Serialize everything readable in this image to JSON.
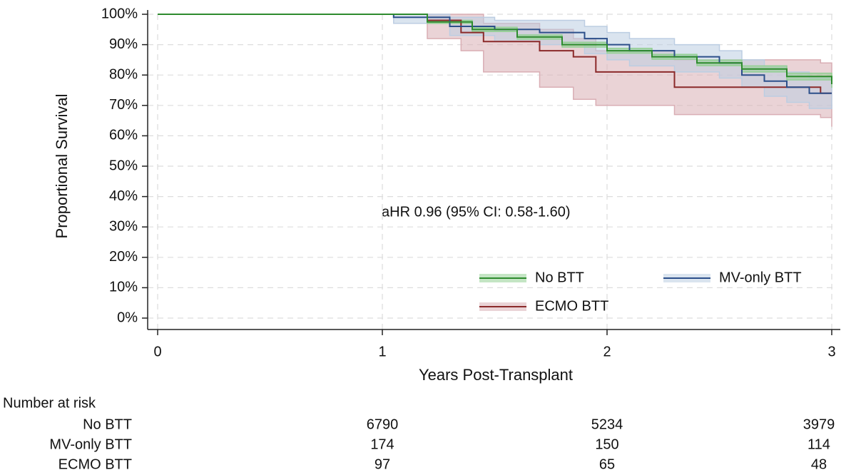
{
  "chart_data": {
    "type": "line",
    "step": true,
    "x_label": "Years Post-Transplant",
    "y_label": "Proportional Survival",
    "annotation": "aHR 0.96 (95% CI: 0.58-1.60)",
    "xlim": [
      0,
      3
    ],
    "xticks": [
      0,
      1,
      2,
      3
    ],
    "ylim": [
      0,
      100
    ],
    "yticks": [
      {
        "value": 0,
        "label": "0%"
      },
      {
        "value": 10,
        "label": "10%"
      },
      {
        "value": 20,
        "label": "20%"
      },
      {
        "value": 30,
        "label": "30%"
      },
      {
        "value": 40,
        "label": "40%"
      },
      {
        "value": 50,
        "label": "50%"
      },
      {
        "value": 60,
        "label": "60%"
      },
      {
        "value": 70,
        "label": "70%"
      },
      {
        "value": 80,
        "label": "80%"
      },
      {
        "value": 90,
        "label": "90%"
      },
      {
        "value": 100,
        "label": "100%"
      }
    ],
    "grid": true,
    "legend": "bottom right",
    "series": [
      {
        "name": "ECMO BTT",
        "color": "#8b2a2a",
        "band_color": "#d9aeb4",
        "x": [
          0,
          1.0,
          1.2,
          1.35,
          1.45,
          1.7,
          1.85,
          1.95,
          2.3,
          2.95,
          3.0
        ],
        "values": [
          100,
          100,
          98,
          94,
          91,
          88,
          86,
          81,
          76,
          74,
          74
        ],
        "lower": [
          100,
          100,
          92,
          88,
          81,
          76,
          72,
          70,
          67,
          66,
          63
        ],
        "upper": [
          100,
          100,
          100,
          100,
          97,
          95,
          92,
          88,
          85,
          84,
          82
        ]
      },
      {
        "name": "MV-only BTT",
        "color": "#2c4f8a",
        "band_color": "#bccde2",
        "x": [
          0,
          1.0,
          1.05,
          1.3,
          1.5,
          1.7,
          1.9,
          2.0,
          2.1,
          2.3,
          2.5,
          2.6,
          2.7,
          2.8,
          2.9,
          3.0
        ],
        "values": [
          100,
          100,
          99,
          96,
          95,
          94,
          92,
          90,
          88,
          86,
          84,
          80,
          78,
          76,
          74,
          74
        ],
        "lower": [
          100,
          100,
          97,
          93,
          91,
          90,
          87,
          85,
          83,
          81,
          79,
          76,
          73,
          71,
          69,
          69
        ],
        "upper": [
          100,
          100,
          100,
          99,
          98,
          98,
          96,
          94,
          92,
          90,
          88,
          85,
          83,
          81,
          79,
          79
        ]
      },
      {
        "name": "No BTT",
        "color": "#2e8b2e",
        "band_color": "#93cf93",
        "x": [
          0,
          1.0,
          1.2,
          1.4,
          1.6,
          1.8,
          2.0,
          2.2,
          2.4,
          2.6,
          2.8,
          3.0
        ],
        "values": [
          100,
          100,
          97.5,
          95,
          92.5,
          90,
          88,
          86,
          84,
          82,
          79.5,
          77
        ],
        "lower": [
          100,
          100,
          97,
          94.3,
          91.8,
          89.2,
          87.2,
          85.2,
          83.1,
          81,
          78.4,
          75.8
        ],
        "upper": [
          100,
          100,
          98,
          95.7,
          93.2,
          90.8,
          88.8,
          86.8,
          84.9,
          83,
          80.6,
          78.2
        ]
      }
    ],
    "risk_table": {
      "title": "Number at risk",
      "x": [
        1,
        2,
        3
      ],
      "rows": [
        {
          "name": "No BTT",
          "values": [
            6790,
            5234,
            3979
          ]
        },
        {
          "name": "MV-only BTT",
          "values": [
            174,
            150,
            114
          ]
        },
        {
          "name": "ECMO BTT",
          "values": [
            97,
            65,
            48
          ]
        }
      ]
    }
  }
}
